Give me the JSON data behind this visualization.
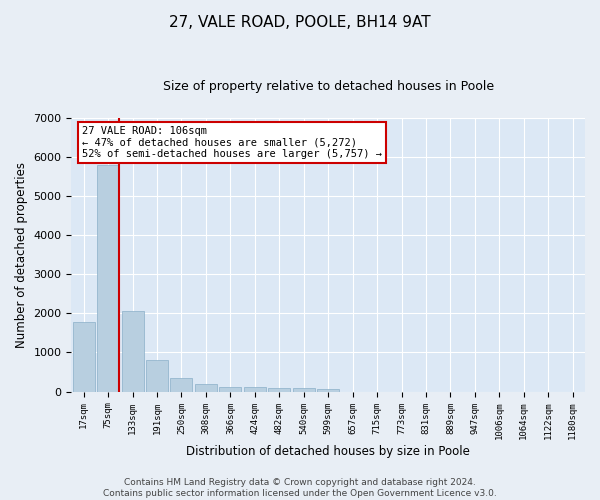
{
  "title": "27, VALE ROAD, POOLE, BH14 9AT",
  "subtitle": "Size of property relative to detached houses in Poole",
  "xlabel": "Distribution of detached houses by size in Poole",
  "ylabel": "Number of detached properties",
  "footer_line1": "Contains HM Land Registry data © Crown copyright and database right 2024.",
  "footer_line2": "Contains public sector information licensed under the Open Government Licence v3.0.",
  "bar_labels": [
    "17sqm",
    "75sqm",
    "133sqm",
    "191sqm",
    "250sqm",
    "308sqm",
    "366sqm",
    "424sqm",
    "482sqm",
    "540sqm",
    "599sqm",
    "657sqm",
    "715sqm",
    "773sqm",
    "831sqm",
    "889sqm",
    "947sqm",
    "1006sqm",
    "1064sqm",
    "1122sqm",
    "1180sqm"
  ],
  "bar_values": [
    1780,
    5800,
    2050,
    820,
    340,
    200,
    120,
    110,
    100,
    80,
    70,
    0,
    0,
    0,
    0,
    0,
    0,
    0,
    0,
    0,
    0
  ],
  "bar_color": "#b8cfe0",
  "bar_edge_color": "#8aafc8",
  "vline_x_idx": 1,
  "vline_color": "#cc0000",
  "annotation_line1": "27 VALE ROAD: 106sqm",
  "annotation_line2": "← 47% of detached houses are smaller (5,272)",
  "annotation_line3": "52% of semi-detached houses are larger (5,757) →",
  "annotation_box_color": "#ffffff",
  "annotation_box_edge": "#cc0000",
  "annotation_fontsize": 7.5,
  "ylim": [
    0,
    7000
  ],
  "yticks": [
    0,
    1000,
    2000,
    3000,
    4000,
    5000,
    6000,
    7000
  ],
  "bg_color": "#e8eef5",
  "plot_bg_color": "#dce8f5",
  "grid_color": "#ffffff",
  "title_fontsize": 11,
  "subtitle_fontsize": 9,
  "footer_fontsize": 6.5
}
